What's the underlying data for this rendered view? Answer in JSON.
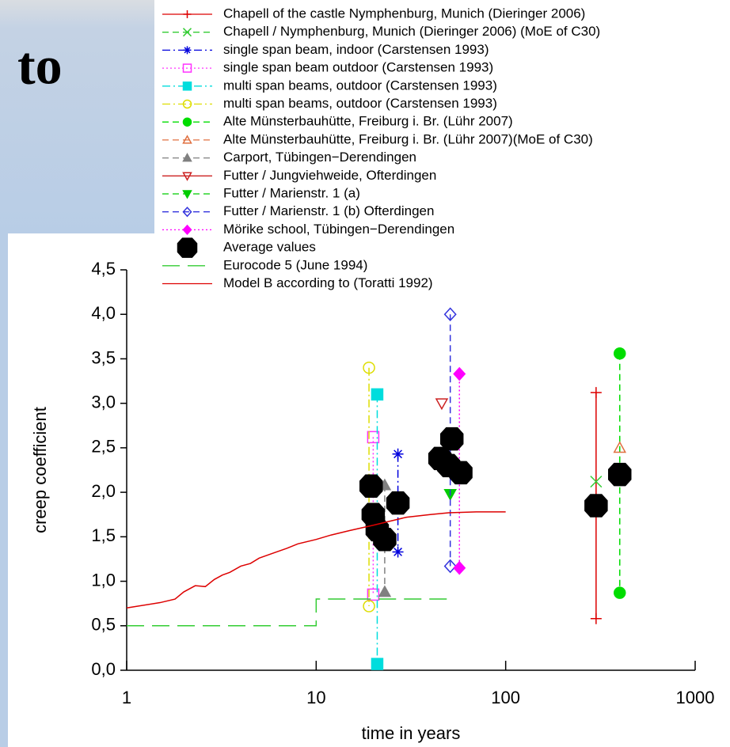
{
  "slide": {
    "heading": "to"
  },
  "chart_data": {
    "type": "line",
    "x_label": "time in years",
    "y_label": "creep coefficient",
    "x_log": true,
    "grid": false,
    "xlim": [
      1,
      1000
    ],
    "xticks": [
      1,
      10,
      100,
      1000
    ],
    "ylim": [
      0,
      4.5
    ],
    "yticks": [
      {
        "value": 0,
        "label": "0,0"
      },
      {
        "value": 0.5,
        "label": "0,5"
      },
      {
        "value": 1,
        "label": "1,0"
      },
      {
        "value": 1.5,
        "label": "1,5"
      },
      {
        "value": 2,
        "label": "2,0"
      },
      {
        "value": 2.5,
        "label": "2,5"
      },
      {
        "value": 3,
        "label": "3,0"
      },
      {
        "value": 3.5,
        "label": "3,5"
      },
      {
        "value": 4,
        "label": "4,0"
      },
      {
        "value": 4.5,
        "label": "4,5"
      }
    ],
    "series": [
      {
        "name": "Chapell of the castle Nymphenburg, Munich (Dieringer 2006)",
        "color": "#dd0000",
        "marker": "plus",
        "line_style": "solid",
        "x": [
          300,
          300
        ],
        "values": [
          3.12,
          0.58
        ]
      },
      {
        "name": "Chapell / Nymphenburg, Munich (Dieringer 2006) (MoE of C30)",
        "color": "#33cc33",
        "marker": "x",
        "line_style": "dashed",
        "x": [
          300
        ],
        "values": [
          2.12
        ]
      },
      {
        "name": "single span beam, indoor (Carstensen 1993)",
        "color": "#0000dd",
        "marker": "asterisk",
        "line_style": "dashdot",
        "x": [
          27,
          27
        ],
        "values": [
          2.43,
          1.33
        ]
      },
      {
        "name": "single span beam outdoor  (Carstensen 1993)",
        "color": "#ff33ff",
        "marker": "square-open",
        "line_style": "dotted",
        "x": [
          20,
          20
        ],
        "values": [
          2.62,
          0.85
        ]
      },
      {
        "name": "multi span beams, outdoor  (Carstensen 1993)",
        "color": "#00dddd",
        "marker": "square",
        "line_style": "dashdot",
        "x": [
          21,
          21
        ],
        "values": [
          3.1,
          0.07
        ]
      },
      {
        "name": "multi span beams, outdoor (Carstensen 1993)",
        "color": "#dddd00",
        "marker": "circle-open",
        "line_style": "dashdot",
        "x": [
          19,
          19
        ],
        "values": [
          3.4,
          0.72
        ]
      },
      {
        "name": "Alte Münsterbauhütte, Freiburg i. Br. (Lühr 2007)",
        "color": "#00dd00",
        "marker": "circle",
        "line_style": "dashed",
        "x": [
          400,
          400
        ],
        "values": [
          3.56,
          0.87
        ]
      },
      {
        "name": "Alte Münsterbauhütte, Freiburg i. Br. (Lühr 2007)(MoE of C30)",
        "color": "#e07040",
        "marker": "triangle-open",
        "line_style": "dashed",
        "x": [
          400
        ],
        "values": [
          2.5
        ]
      },
      {
        "name": "Carport, Tübingen−Derendingen",
        "color": "#808080",
        "marker": "triangle",
        "line_style": "dashed",
        "x": [
          23,
          23
        ],
        "values": [
          2.08,
          0.88
        ]
      },
      {
        "name": "Futter / Jungviehweide, Ofterdingen",
        "color": "#cc2222",
        "marker": "triangle-down-open",
        "line_style": "solid",
        "x": [
          46
        ],
        "values": [
          3.0
        ]
      },
      {
        "name": "Futter / Marienstr. 1 (a)",
        "color": "#00cc00",
        "marker": "triangle-down",
        "line_style": "dashed",
        "x": [
          51
        ],
        "values": [
          1.98
        ]
      },
      {
        "name": "Futter / Marienstr. 1 (b) Ofterdingen",
        "color": "#3333dd",
        "marker": "diamond-open",
        "line_style": "dashed",
        "x": [
          51,
          51
        ],
        "values": [
          4.0,
          1.17
        ]
      },
      {
        "name": "Mörike school, Tübingen−Derendingen",
        "color": "#ff00ff",
        "marker": "diamond",
        "line_style": "dotted",
        "x": [
          57,
          57
        ],
        "values": [
          3.33,
          1.15
        ]
      },
      {
        "name": "Average values",
        "color": "#000000",
        "marker": "big-circle",
        "line_style": "none",
        "x": [
          19.5,
          20,
          21,
          23,
          27,
          45,
          50,
          52,
          58,
          300,
          400
        ],
        "values": [
          2.07,
          1.75,
          1.58,
          1.47,
          1.88,
          2.38,
          2.3,
          2.6,
          2.22,
          1.85,
          2.2
        ]
      },
      {
        "name": "Eurocode 5 (June 1994)",
        "color": "#33cc33",
        "marker": "none",
        "line_style": "longdash",
        "x": [
          1,
          10,
          10,
          50
        ],
        "values": [
          0.5,
          0.5,
          0.8,
          0.8
        ]
      },
      {
        "name": "Model B according to (Toratti 1992)",
        "color": "#dd0000",
        "marker": "none",
        "line_style": "solid",
        "x": [
          1,
          1.5,
          1.8,
          2,
          2.3,
          2.6,
          2.9,
          3.2,
          3.5,
          4,
          4.5,
          5,
          6,
          7,
          8,
          10,
          12,
          15,
          20,
          25,
          30,
          40,
          50,
          70,
          100
        ],
        "values": [
          0.7,
          0.76,
          0.8,
          0.88,
          0.95,
          0.94,
          1.02,
          1.07,
          1.1,
          1.17,
          1.2,
          1.26,
          1.32,
          1.37,
          1.42,
          1.47,
          1.52,
          1.57,
          1.63,
          1.68,
          1.72,
          1.75,
          1.77,
          1.78,
          1.78
        ]
      }
    ]
  }
}
